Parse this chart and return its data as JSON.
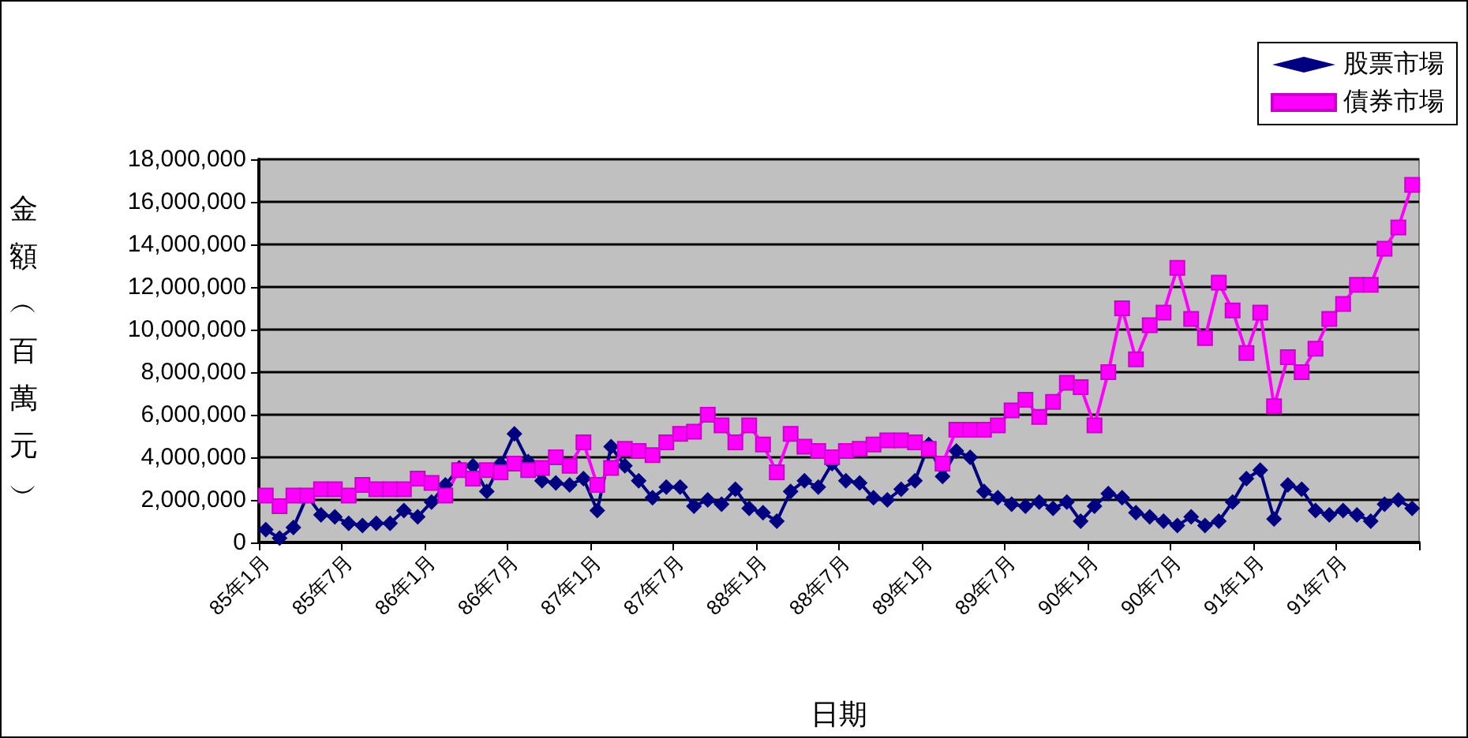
{
  "chart_data": {
    "type": "line",
    "xlabel": "日期",
    "ylabel": "金額︵百萬元︶",
    "categories": [
      "85年1月",
      null,
      null,
      null,
      null,
      null,
      "85年7月",
      null,
      null,
      null,
      null,
      null,
      "86年1月",
      null,
      null,
      null,
      null,
      null,
      "86年7月",
      null,
      null,
      null,
      null,
      null,
      "87年1月",
      null,
      null,
      null,
      null,
      null,
      "87年7月",
      null,
      null,
      null,
      null,
      null,
      "88年1月",
      null,
      null,
      null,
      null,
      null,
      "88年7月",
      null,
      null,
      null,
      null,
      null,
      "89年1月",
      null,
      null,
      null,
      null,
      null,
      "89年7月",
      null,
      null,
      null,
      null,
      null,
      "90年1月",
      null,
      null,
      null,
      null,
      null,
      "90年7月",
      null,
      null,
      null,
      null,
      null,
      "91年1月",
      null,
      null,
      null,
      null,
      null,
      "91年7月",
      null,
      null,
      null,
      null,
      null
    ],
    "series": [
      {
        "name": "股票市場",
        "color": "#000080",
        "marker": "diamond",
        "values": [
          600000,
          200000,
          700000,
          2200000,
          1300000,
          1200000,
          900000,
          800000,
          900000,
          900000,
          1500000,
          1200000,
          1900000,
          2700000,
          3500000,
          3600000,
          2400000,
          3700000,
          5100000,
          3800000,
          2900000,
          2800000,
          2700000,
          3000000,
          1500000,
          4500000,
          3600000,
          2900000,
          2100000,
          2600000,
          2600000,
          1700000,
          2000000,
          1800000,
          2500000,
          1600000,
          1400000,
          1000000,
          2400000,
          2900000,
          2600000,
          3700000,
          2900000,
          2800000,
          2100000,
          2000000,
          2500000,
          2900000,
          4600000,
          3100000,
          4300000,
          4000000,
          2400000,
          2100000,
          1800000,
          1700000,
          1900000,
          1600000,
          1900000,
          1000000,
          1700000,
          2300000,
          2100000,
          1400000,
          1200000,
          1000000,
          800000,
          1200000,
          800000,
          1000000,
          1900000,
          3000000,
          3400000,
          1100000,
          2700000,
          2500000,
          1500000,
          1300000,
          1500000,
          1300000,
          1000000,
          1800000,
          2000000,
          1600000
        ]
      },
      {
        "name": "債券市場",
        "color": "#ff00ff",
        "marker": "square",
        "values": [
          2200000,
          1700000,
          2200000,
          2200000,
          2500000,
          2500000,
          2200000,
          2700000,
          2500000,
          2500000,
          2500000,
          3000000,
          2800000,
          2200000,
          3400000,
          3000000,
          3400000,
          3300000,
          3700000,
          3400000,
          3500000,
          4000000,
          3600000,
          4700000,
          2700000,
          3500000,
          4400000,
          4300000,
          4100000,
          4700000,
          5100000,
          5200000,
          6000000,
          5500000,
          4700000,
          5500000,
          4600000,
          3300000,
          5100000,
          4500000,
          4300000,
          4000000,
          4300000,
          4400000,
          4600000,
          4800000,
          4800000,
          4700000,
          4400000,
          3700000,
          5300000,
          5300000,
          5300000,
          5500000,
          6200000,
          6700000,
          5900000,
          6600000,
          7500000,
          7300000,
          5500000,
          8000000,
          11000000,
          8600000,
          10200000,
          10800000,
          12900000,
          10500000,
          9600000,
          12200000,
          10900000,
          8900000,
          10800000,
          6400000,
          8700000,
          8000000,
          9100000,
          10500000,
          11200000,
          12100000,
          12100000,
          13800000,
          14800000,
          16800000
        ]
      }
    ],
    "ylim": [
      0,
      18000000
    ],
    "yticks": [
      0,
      {
        "value": 2000000,
        "label": "2,000,000"
      },
      {
        "value": 4000000,
        "label": "4,000,000"
      },
      {
        "value": 6000000,
        "label": "6,000,000"
      },
      {
        "value": 8000000,
        "label": "8,000,000"
      },
      {
        "value": 10000000,
        "label": "10,000,000"
      },
      {
        "value": 12000000,
        "label": "12,000,000"
      },
      {
        "value": 14000000,
        "label": "14,000,000"
      },
      {
        "value": 16000000,
        "label": "16,000,000"
      },
      {
        "value": 18000000,
        "label": "18,000,000"
      }
    ],
    "grid": "y",
    "legend": "top right",
    "line_style": "solid"
  }
}
